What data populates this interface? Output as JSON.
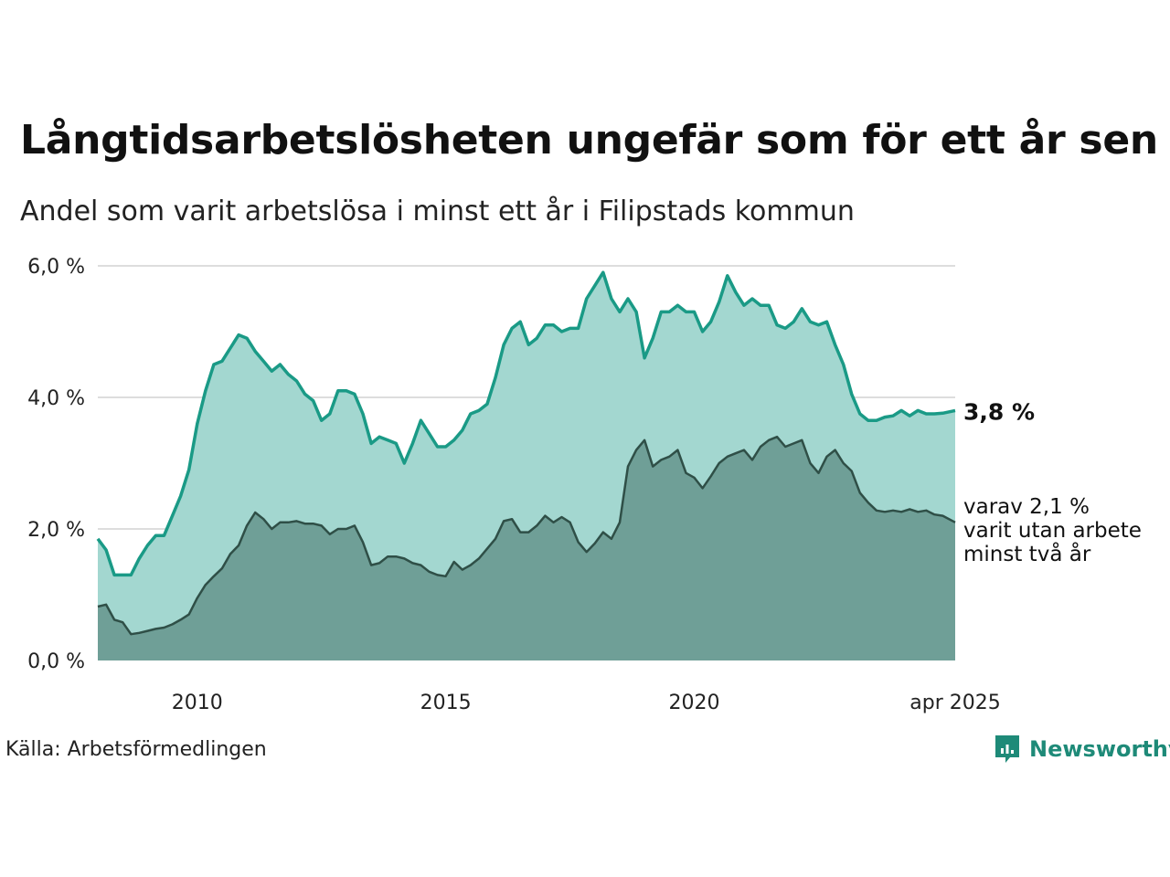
{
  "title": "Långtidsarbetslösheten ungefär som för ett år sen",
  "subtitle": "Andel som varit arbetslösa i minst ett år i Filipstads kommun",
  "source": "Källa: Arbetsförmedlingen",
  "brand": "Newsworthy",
  "colors": {
    "total_line": "#1a9a86",
    "total_fill": "#a3d7d0",
    "sub_line": "#2f4f47",
    "sub_fill": "#6f9f97",
    "grid": "#dddddd",
    "brand": "#1e8a78"
  },
  "chart_data": {
    "type": "area",
    "x_start": "2008-01",
    "x_end": "2025-04",
    "ylim": [
      0,
      6.0
    ],
    "yticks": [
      0,
      2.0,
      4.0,
      6.0
    ],
    "ytick_labels": [
      "0,0 %",
      "2,0 %",
      "4,0 %",
      "6,0 %"
    ],
    "xtick_positions": [
      "2010-01",
      "2015-01",
      "2020-01",
      "2025-04"
    ],
    "xtick_labels": [
      "2010",
      "2015",
      "2020",
      "apr 2025"
    ],
    "grid": true,
    "end_label_total": "3,8 %",
    "end_label_sub": [
      "varav 2,1 %",
      "varit utan arbete",
      "minst två år"
    ],
    "series": [
      {
        "key": "total",
        "points": [
          [
            "2008-01",
            1.85
          ],
          [
            "2008-03",
            1.68
          ],
          [
            "2008-05",
            1.3
          ],
          [
            "2008-07",
            1.3
          ],
          [
            "2008-09",
            1.3
          ],
          [
            "2008-11",
            1.55
          ],
          [
            "2009-01",
            1.75
          ],
          [
            "2009-03",
            1.9
          ],
          [
            "2009-05",
            1.9
          ],
          [
            "2009-07",
            2.2
          ],
          [
            "2009-09",
            2.5
          ],
          [
            "2009-11",
            2.9
          ],
          [
            "2010-01",
            3.6
          ],
          [
            "2010-03",
            4.1
          ],
          [
            "2010-05",
            4.5
          ],
          [
            "2010-07",
            4.55
          ],
          [
            "2010-09",
            4.75
          ],
          [
            "2010-11",
            4.95
          ],
          [
            "2011-01",
            4.9
          ],
          [
            "2011-03",
            4.7
          ],
          [
            "2011-05",
            4.55
          ],
          [
            "2011-07",
            4.4
          ],
          [
            "2011-09",
            4.5
          ],
          [
            "2011-11",
            4.35
          ],
          [
            "2012-01",
            4.25
          ],
          [
            "2012-03",
            4.05
          ],
          [
            "2012-05",
            3.95
          ],
          [
            "2012-07",
            3.65
          ],
          [
            "2012-09",
            3.75
          ],
          [
            "2012-11",
            4.1
          ],
          [
            "2013-01",
            4.1
          ],
          [
            "2013-03",
            4.05
          ],
          [
            "2013-05",
            3.75
          ],
          [
            "2013-07",
            3.3
          ],
          [
            "2013-09",
            3.4
          ],
          [
            "2013-11",
            3.35
          ],
          [
            "2014-01",
            3.3
          ],
          [
            "2014-03",
            3.0
          ],
          [
            "2014-05",
            3.3
          ],
          [
            "2014-07",
            3.65
          ],
          [
            "2014-09",
            3.45
          ],
          [
            "2014-11",
            3.25
          ],
          [
            "2015-01",
            3.25
          ],
          [
            "2015-03",
            3.35
          ],
          [
            "2015-05",
            3.5
          ],
          [
            "2015-07",
            3.75
          ],
          [
            "2015-09",
            3.8
          ],
          [
            "2015-11",
            3.9
          ],
          [
            "2016-01",
            4.3
          ],
          [
            "2016-03",
            4.8
          ],
          [
            "2016-05",
            5.05
          ],
          [
            "2016-07",
            5.15
          ],
          [
            "2016-09",
            4.8
          ],
          [
            "2016-11",
            4.9
          ],
          [
            "2017-01",
            5.1
          ],
          [
            "2017-03",
            5.1
          ],
          [
            "2017-05",
            5.0
          ],
          [
            "2017-07",
            5.05
          ],
          [
            "2017-09",
            5.05
          ],
          [
            "2017-11",
            5.5
          ],
          [
            "2018-01",
            5.7
          ],
          [
            "2018-03",
            5.9
          ],
          [
            "2018-05",
            5.5
          ],
          [
            "2018-07",
            5.3
          ],
          [
            "2018-09",
            5.5
          ],
          [
            "2018-11",
            5.3
          ],
          [
            "2019-01",
            4.6
          ],
          [
            "2019-03",
            4.9
          ],
          [
            "2019-05",
            5.3
          ],
          [
            "2019-07",
            5.3
          ],
          [
            "2019-09",
            5.4
          ],
          [
            "2019-11",
            5.3
          ],
          [
            "2020-01",
            5.3
          ],
          [
            "2020-03",
            5.0
          ],
          [
            "2020-05",
            5.15
          ],
          [
            "2020-07",
            5.45
          ],
          [
            "2020-09",
            5.85
          ],
          [
            "2020-11",
            5.6
          ],
          [
            "2021-01",
            5.4
          ],
          [
            "2021-03",
            5.5
          ],
          [
            "2021-05",
            5.4
          ],
          [
            "2021-07",
            5.4
          ],
          [
            "2021-09",
            5.1
          ],
          [
            "2021-11",
            5.05
          ],
          [
            "2022-01",
            5.15
          ],
          [
            "2022-03",
            5.35
          ],
          [
            "2022-05",
            5.15
          ],
          [
            "2022-07",
            5.1
          ],
          [
            "2022-09",
            5.15
          ],
          [
            "2022-11",
            4.8
          ],
          [
            "2023-01",
            4.5
          ],
          [
            "2023-03",
            4.05
          ],
          [
            "2023-05",
            3.75
          ],
          [
            "2023-07",
            3.65
          ],
          [
            "2023-09",
            3.65
          ],
          [
            "2023-11",
            3.7
          ],
          [
            "2024-01",
            3.72
          ],
          [
            "2024-03",
            3.8
          ],
          [
            "2024-05",
            3.72
          ],
          [
            "2024-07",
            3.8
          ],
          [
            "2024-09",
            3.75
          ],
          [
            "2024-11",
            3.75
          ],
          [
            "2025-01",
            3.76
          ],
          [
            "2025-04",
            3.8
          ]
        ]
      },
      {
        "key": "sub",
        "points": [
          [
            "2008-01",
            0.82
          ],
          [
            "2008-03",
            0.85
          ],
          [
            "2008-05",
            0.62
          ],
          [
            "2008-07",
            0.58
          ],
          [
            "2008-09",
            0.4
          ],
          [
            "2008-11",
            0.42
          ],
          [
            "2009-01",
            0.45
          ],
          [
            "2009-03",
            0.48
          ],
          [
            "2009-05",
            0.5
          ],
          [
            "2009-07",
            0.55
          ],
          [
            "2009-09",
            0.62
          ],
          [
            "2009-11",
            0.7
          ],
          [
            "2010-01",
            0.95
          ],
          [
            "2010-03",
            1.15
          ],
          [
            "2010-05",
            1.28
          ],
          [
            "2010-07",
            1.4
          ],
          [
            "2010-09",
            1.62
          ],
          [
            "2010-11",
            1.75
          ],
          [
            "2011-01",
            2.05
          ],
          [
            "2011-03",
            2.25
          ],
          [
            "2011-05",
            2.15
          ],
          [
            "2011-07",
            2.0
          ],
          [
            "2011-09",
            2.1
          ],
          [
            "2011-11",
            2.1
          ],
          [
            "2012-01",
            2.12
          ],
          [
            "2012-03",
            2.08
          ],
          [
            "2012-05",
            2.08
          ],
          [
            "2012-07",
            2.05
          ],
          [
            "2012-09",
            1.92
          ],
          [
            "2012-11",
            2.0
          ],
          [
            "2013-01",
            2.0
          ],
          [
            "2013-03",
            2.05
          ],
          [
            "2013-05",
            1.8
          ],
          [
            "2013-07",
            1.45
          ],
          [
            "2013-09",
            1.48
          ],
          [
            "2013-11",
            1.58
          ],
          [
            "2014-01",
            1.58
          ],
          [
            "2014-03",
            1.55
          ],
          [
            "2014-05",
            1.48
          ],
          [
            "2014-07",
            1.45
          ],
          [
            "2014-09",
            1.35
          ],
          [
            "2014-11",
            1.3
          ],
          [
            "2015-01",
            1.28
          ],
          [
            "2015-03",
            1.5
          ],
          [
            "2015-05",
            1.38
          ],
          [
            "2015-07",
            1.45
          ],
          [
            "2015-09",
            1.55
          ],
          [
            "2015-11",
            1.7
          ],
          [
            "2016-01",
            1.85
          ],
          [
            "2016-03",
            2.12
          ],
          [
            "2016-05",
            2.15
          ],
          [
            "2016-07",
            1.95
          ],
          [
            "2016-09",
            1.95
          ],
          [
            "2016-11",
            2.05
          ],
          [
            "2017-01",
            2.2
          ],
          [
            "2017-03",
            2.1
          ],
          [
            "2017-05",
            2.18
          ],
          [
            "2017-07",
            2.1
          ],
          [
            "2017-09",
            1.8
          ],
          [
            "2017-11",
            1.65
          ],
          [
            "2018-01",
            1.78
          ],
          [
            "2018-03",
            1.95
          ],
          [
            "2018-05",
            1.85
          ],
          [
            "2018-07",
            2.1
          ],
          [
            "2018-09",
            2.95
          ],
          [
            "2018-11",
            3.2
          ],
          [
            "2019-01",
            3.35
          ],
          [
            "2019-03",
            2.95
          ],
          [
            "2019-05",
            3.05
          ],
          [
            "2019-07",
            3.1
          ],
          [
            "2019-09",
            3.2
          ],
          [
            "2019-11",
            2.85
          ],
          [
            "2020-01",
            2.78
          ],
          [
            "2020-03",
            2.62
          ],
          [
            "2020-05",
            2.8
          ],
          [
            "2020-07",
            3.0
          ],
          [
            "2020-09",
            3.1
          ],
          [
            "2020-11",
            3.15
          ],
          [
            "2021-01",
            3.2
          ],
          [
            "2021-03",
            3.05
          ],
          [
            "2021-05",
            3.25
          ],
          [
            "2021-07",
            3.35
          ],
          [
            "2021-09",
            3.4
          ],
          [
            "2021-11",
            3.25
          ],
          [
            "2022-01",
            3.3
          ],
          [
            "2022-03",
            3.35
          ],
          [
            "2022-05",
            3.0
          ],
          [
            "2022-07",
            2.85
          ],
          [
            "2022-09",
            3.1
          ],
          [
            "2022-11",
            3.2
          ],
          [
            "2023-01",
            3.0
          ],
          [
            "2023-03",
            2.88
          ],
          [
            "2023-05",
            2.55
          ],
          [
            "2023-07",
            2.4
          ],
          [
            "2023-09",
            2.28
          ],
          [
            "2023-11",
            2.26
          ],
          [
            "2024-01",
            2.28
          ],
          [
            "2024-03",
            2.26
          ],
          [
            "2024-05",
            2.3
          ],
          [
            "2024-07",
            2.26
          ],
          [
            "2024-09",
            2.28
          ],
          [
            "2024-11",
            2.22
          ],
          [
            "2025-01",
            2.2
          ],
          [
            "2025-04",
            2.1
          ]
        ]
      }
    ]
  }
}
